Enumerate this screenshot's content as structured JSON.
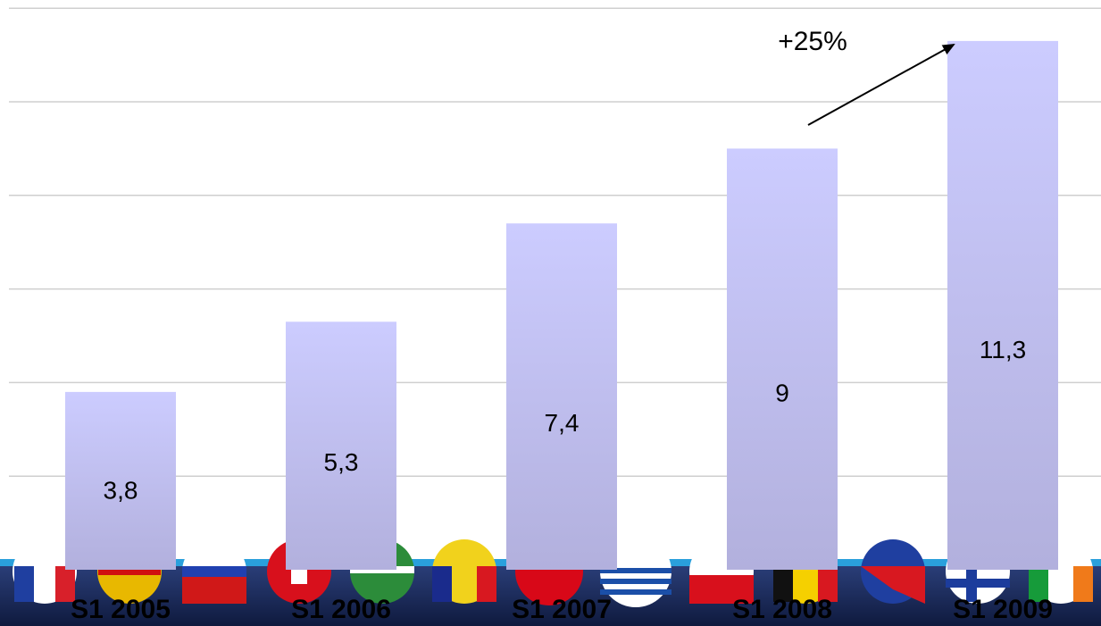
{
  "chart_data": {
    "type": "bar",
    "categories": [
      "S1 2005",
      "S1 2006",
      "S1 2007",
      "S1 2008",
      "S1 2009"
    ],
    "values": [
      3.8,
      5.3,
      7.4,
      9,
      11.3
    ],
    "value_labels": [
      "3,8",
      "5,3",
      "7,4",
      "9",
      "11,3"
    ],
    "title": "",
    "xlabel": "",
    "ylabel": "",
    "ylim": [
      0,
      12
    ],
    "grid": true,
    "annotation": {
      "text": "+25%",
      "from_category": "S1 2008",
      "to_category": "S1 2009"
    },
    "colors": {
      "bar_top": "#ccccff",
      "bar_bottom": "#b2b0dd",
      "grid": "#cfcfcf",
      "footer": "#1b2a5c",
      "footer_stripe": "#2aa0dc"
    }
  },
  "footer": {
    "icon": "europe-flags-banner"
  }
}
